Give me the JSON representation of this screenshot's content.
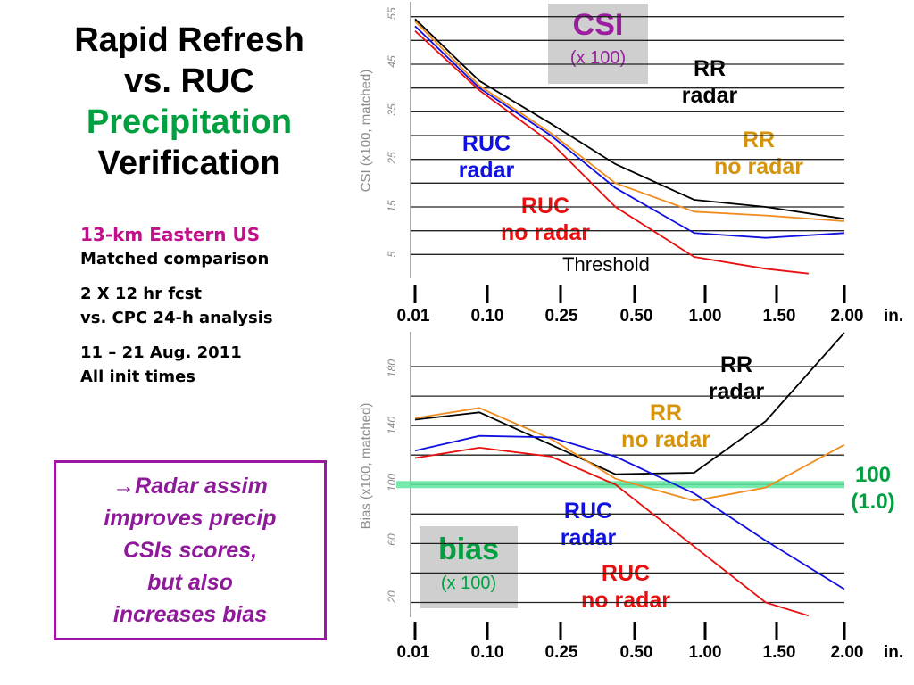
{
  "title": {
    "line1": "Rapid Refresh",
    "line2": "vs. RUC",
    "line3": "Precipitation",
    "line4": "Verification"
  },
  "info": {
    "region": "13-km Eastern US",
    "comparison": "Matched comparison",
    "forecast": "2 X 12 hr fcst",
    "analysis": "vs. CPC 24-h analysis",
    "period": "11 – 21 Aug. 2011",
    "init": "All init times"
  },
  "note": {
    "line1": "→Radar assim",
    "line2": "improves precip",
    "line3": "CSIs scores,",
    "line4": "but also",
    "line5": "increases bias"
  },
  "colors": {
    "rr_radar": "#000000",
    "rr_no_radar": "#f08c1e",
    "ruc_radar": "#1010e0",
    "ruc_no_radar": "#e81010",
    "ref_line": "#5fe6a0",
    "title_green": "#00a040",
    "note_purple": "#8e1a99"
  },
  "chart_data": [
    {
      "type": "line",
      "box_title": "CSI",
      "box_subtitle": "(x 100)",
      "ylabel": "CSI (x100, matched)",
      "xlabel": "Threshold",
      "x_unit": "in.",
      "x_categories": [
        "0.01",
        "0.10",
        "0.25",
        "0.50",
        "1.00",
        "1.50",
        "2.00"
      ],
      "ylim": [
        0,
        57
      ],
      "yticks": [
        "5",
        "15",
        "25",
        "35",
        "45",
        "55"
      ],
      "y_gridlines": [
        5,
        10,
        15,
        20,
        25,
        30,
        35,
        40,
        45,
        50,
        55
      ],
      "series": [
        {
          "name": "RR radar",
          "label_line1": "RR",
          "label_line2": "radar",
          "color_key": "rr_radar",
          "x": [
            0,
            0.9,
            1.9,
            2.8,
            3.9,
            4.9,
            6.0
          ],
          "values": [
            54.5,
            41.5,
            32.5,
            24,
            16.5,
            15,
            12.5
          ]
        },
        {
          "name": "RR no radar",
          "label_line1": "RR",
          "label_line2": "no radar",
          "color_key": "rr_no_radar",
          "x": [
            0,
            0.9,
            1.9,
            2.8,
            3.9,
            4.9,
            6.0
          ],
          "values": [
            54,
            40.5,
            30.5,
            20,
            14,
            13.2,
            12
          ]
        },
        {
          "name": "RUC radar",
          "label_line1": "RUC",
          "label_line2": "radar",
          "color_key": "ruc_radar",
          "x": [
            0,
            0.9,
            1.9,
            2.8,
            3.9,
            4.9,
            6.0
          ],
          "values": [
            53,
            40,
            30,
            19,
            9.5,
            8.5,
            9.5
          ]
        },
        {
          "name": "RUC no radar",
          "label_line1": "RUC",
          "label_line2": "no radar",
          "color_key": "ruc_no_radar",
          "x": [
            0,
            0.9,
            1.9,
            2.8,
            3.9,
            4.9,
            5.5
          ],
          "values": [
            52,
            39.5,
            28.5,
            15,
            4.5,
            2,
            1
          ]
        }
      ]
    },
    {
      "type": "line",
      "box_title": "bias",
      "box_subtitle": "(x 100)",
      "ylabel": "Bias (x100, matched)",
      "x_unit": "in.",
      "x_categories": [
        "0.01",
        "0.10",
        "0.25",
        "0.50",
        "1.00",
        "1.50",
        "2.00"
      ],
      "ylim": [
        10,
        200
      ],
      "yticks": [
        "20",
        "60",
        "100",
        "140",
        "180"
      ],
      "y_gridlines": [
        20,
        40,
        60,
        80,
        100,
        120,
        140,
        160,
        180
      ],
      "reference": {
        "value": 100,
        "label_line1": "100",
        "label_line2": "(1.0)"
      },
      "series": [
        {
          "name": "RR radar",
          "label_line1": "RR",
          "label_line2": "radar",
          "color_key": "rr_radar",
          "x": [
            0,
            0.9,
            1.9,
            2.8,
            3.9,
            4.9,
            6.0
          ],
          "values": [
            144,
            149,
            127,
            107,
            108,
            143,
            203
          ]
        },
        {
          "name": "RR no radar",
          "label_line1": "RR",
          "label_line2": "no radar",
          "color_key": "rr_no_radar",
          "x": [
            0,
            0.9,
            1.9,
            2.8,
            3.9,
            4.9,
            6.0
          ],
          "values": [
            145,
            152,
            131,
            104,
            89,
            98,
            127
          ]
        },
        {
          "name": "RUC radar",
          "label_line1": "RUC",
          "label_line2": "radar",
          "color_key": "ruc_radar",
          "x": [
            0,
            0.9,
            1.9,
            2.8,
            3.9,
            4.9,
            6.0
          ],
          "values": [
            123,
            133,
            132,
            119,
            94,
            62,
            29
          ]
        },
        {
          "name": "RUC no radar",
          "label_line1": "RUC",
          "label_line2": "no radar",
          "color_key": "ruc_no_radar",
          "x": [
            0,
            0.9,
            1.9,
            2.8,
            3.9,
            4.9,
            5.5
          ],
          "values": [
            118,
            125,
            119,
            100,
            58,
            20,
            11
          ]
        }
      ]
    }
  ]
}
